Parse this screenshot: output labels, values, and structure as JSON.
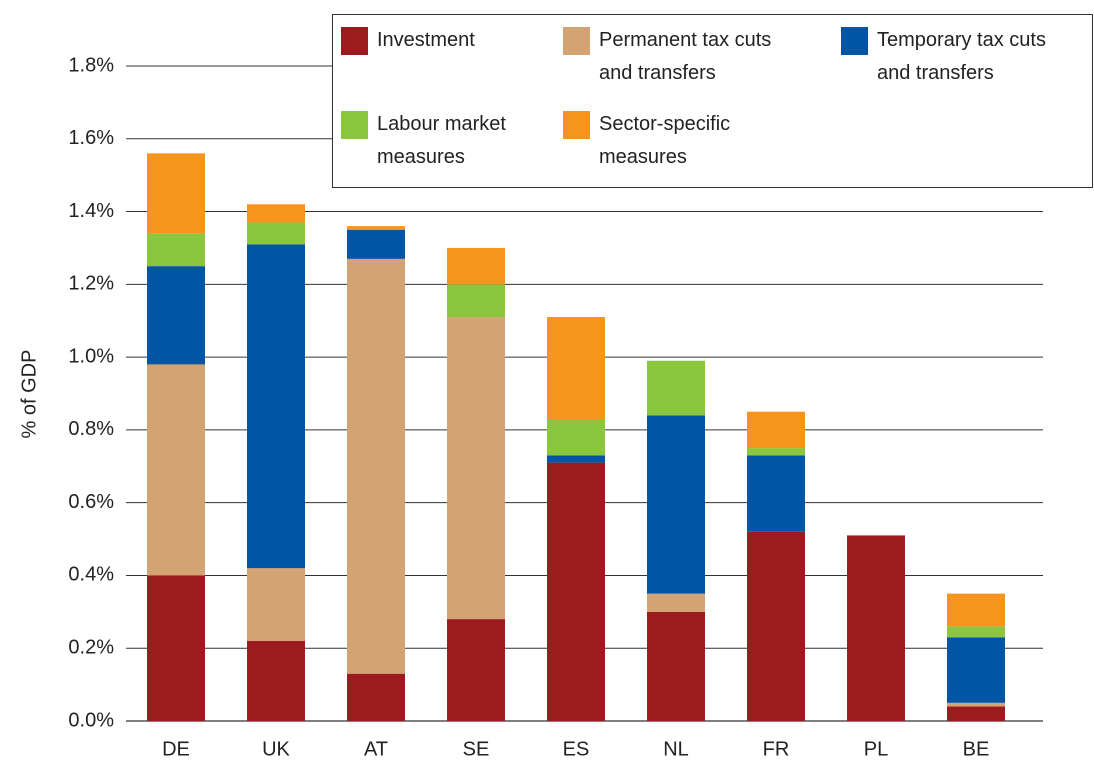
{
  "chart_data": {
    "type": "stacked-bar",
    "y_label": "% of GDP",
    "categories": [
      "DE",
      "UK",
      "AT",
      "SE",
      "ES",
      "NL",
      "FR",
      "PL",
      "BE"
    ],
    "series": [
      {
        "name": "Investment",
        "color": "#9b1b1f",
        "values": [
          0.4,
          0.22,
          0.13,
          0.28,
          0.71,
          0.3,
          0.52,
          0.51,
          0.04
        ]
      },
      {
        "name": "Permanent tax cuts and transfers",
        "color": "#d4a373",
        "values": [
          0.58,
          0.2,
          1.14,
          0.83,
          0,
          0.05,
          0,
          0,
          0.01
        ]
      },
      {
        "name": "Temporary tax cuts and transfers",
        "color": "#0055a4",
        "values": [
          0.27,
          0.89,
          0.08,
          0,
          0.02,
          0.49,
          0.21,
          0,
          0.18
        ]
      },
      {
        "name": "Labour market measures",
        "color": "#8cc63f",
        "values": [
          0.09,
          0.06,
          0,
          0.09,
          0.1,
          0.15,
          0.02,
          0,
          0.03
        ]
      },
      {
        "name": "Sector-specific measures",
        "color": "#f7941d",
        "values": [
          0.22,
          0.05,
          0.01,
          0.1,
          0.28,
          0,
          0.1,
          0,
          0.09
        ]
      }
    ],
    "ylim": [
      0,
      1.8
    ],
    "yticks": [
      {
        "value": 0,
        "label": "0.0%"
      },
      {
        "value": 0.2,
        "label": "0.2%"
      },
      {
        "value": 0.4,
        "label": "0.4%"
      },
      {
        "value": 0.6,
        "label": "0.6%"
      },
      {
        "value": 0.8,
        "label": "0.8%"
      },
      {
        "value": 1.0,
        "label": "1.0%"
      },
      {
        "value": 1.2,
        "label": "1.2%"
      },
      {
        "value": 1.4,
        "label": "1.4%"
      },
      {
        "value": 1.6,
        "label": "1.6%"
      },
      {
        "value": 1.8,
        "label": "1.8%"
      }
    ],
    "grid": true
  }
}
